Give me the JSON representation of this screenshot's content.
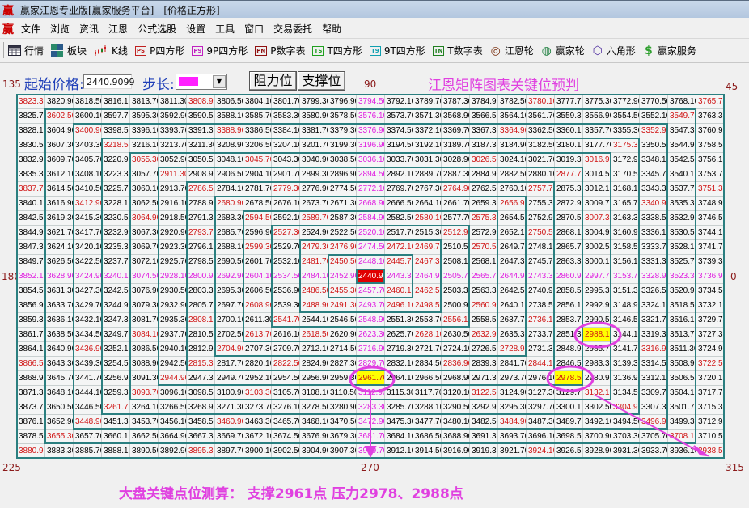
{
  "window": {
    "title": "赢家江恩专业版[赢家服务平台] - [价格正方形]",
    "logo": "赢"
  },
  "menu": [
    "文件",
    "浏览",
    "资讯",
    "江恩",
    "公式选股",
    "设置",
    "工具",
    "窗口",
    "交易委托",
    "帮助"
  ],
  "toolbar": [
    {
      "label": "行情",
      "icon": "table-icon"
    },
    {
      "label": "板块",
      "icon": "blocks-icon"
    },
    {
      "label": "K线",
      "icon": "candlestick-icon"
    },
    {
      "label": "P四方形",
      "icon": "ps-icon",
      "icon_text": "PS",
      "color": "#c02020"
    },
    {
      "label": "9P四方形",
      "icon": "p9-icon",
      "icon_text": "P9",
      "color": "#c020c0"
    },
    {
      "label": "P数字表",
      "icon": "pn-icon",
      "icon_text": "PN",
      "color": "#901010"
    },
    {
      "label": "T四方形",
      "icon": "ts-icon",
      "icon_text": "TS",
      "color": "#20a020"
    },
    {
      "label": "9T四方形",
      "icon": "t9-icon",
      "icon_text": "T9",
      "color": "#10a0b0"
    },
    {
      "label": "T数字表",
      "icon": "tn-icon",
      "icon_text": "TN",
      "color": "#208020"
    },
    {
      "label": "江恩轮",
      "icon": "gann-wheel-icon",
      "icon_text": "◎",
      "color": "#7a3010"
    },
    {
      "label": "赢家轮",
      "icon": "winner-wheel-icon",
      "icon_text": "◍",
      "color": "#208040"
    },
    {
      "label": "六角形",
      "icon": "hexagon-icon",
      "icon_text": "⬡",
      "color": "#5030a0"
    },
    {
      "label": "赢家服务",
      "icon": "dollar-icon",
      "icon_text": "$",
      "color": "#30a030"
    }
  ],
  "controls": {
    "start_price_label": "起始价格:",
    "start_price_value": "2440.9099",
    "step_label": "步长:",
    "step_color": "#ff20ff",
    "resistance_button": "阻力位",
    "support_button": "支撑位"
  },
  "heading": "江恩矩阵图表关键位预判",
  "angles": {
    "top_left": "135",
    "top": "90",
    "top_right": "45",
    "left": "180",
    "right": "0",
    "bottom_left": "225",
    "bottom": "270",
    "bottom_right": "315"
  },
  "colors": {
    "ring_line": "#2b7f80",
    "red": "#d01515",
    "magenta": "#e020e0",
    "center_bg": "#e00000",
    "highlight_bg": "#ffff00",
    "annotation": "#e040e0"
  },
  "grid": {
    "rows": [
      [
        3823.3,
        3820.9,
        3818.5,
        3816.1,
        3813.7,
        3811.3,
        3808.9,
        3806.5,
        3804.1,
        3801.7,
        3799.3,
        3796.9,
        3794.5,
        3792.1,
        3789.7,
        3787.3,
        3784.9,
        3782.5,
        3780.1,
        3777.7,
        3775.3,
        3772.9,
        3770.5,
        3768.1,
        3765.7
      ],
      [
        3825.7,
        3602.5,
        3600.1,
        3597.7,
        3595.3,
        3592.9,
        3590.5,
        3588.1,
        3585.7,
        3583.3,
        3580.9,
        3578.5,
        3576.1,
        3573.7,
        3571.3,
        3568.9,
        3566.5,
        3564.1,
        3561.7,
        3559.3,
        3556.9,
        3554.5,
        3552.1,
        3549.7,
        3763.3
      ],
      [
        3828.1,
        3604.9,
        3400.9,
        3398.5,
        3396.1,
        3393.7,
        3391.3,
        3388.9,
        3386.5,
        3384.1,
        3381.7,
        3379.3,
        3376.9,
        3374.5,
        3372.1,
        3369.7,
        3367.3,
        3364.9,
        3362.5,
        3360.1,
        3357.7,
        3355.3,
        3352.9,
        3547.3,
        3760.9
      ],
      [
        3830.5,
        3607.3,
        3403.3,
        3218.5,
        3216.1,
        3213.7,
        3211.3,
        3208.9,
        3206.5,
        3204.1,
        3201.7,
        3199.3,
        3196.9,
        3194.5,
        3192.1,
        3189.7,
        3187.3,
        3184.9,
        3182.5,
        3180.1,
        3177.7,
        3175.3,
        3350.5,
        3544.9,
        3758.5
      ],
      [
        3832.9,
        3609.7,
        3405.7,
        3220.9,
        3055.3,
        3052.9,
        3050.5,
        3048.1,
        3045.7,
        3043.3,
        3040.9,
        3038.5,
        3036.1,
        3033.7,
        3031.3,
        3028.9,
        3026.5,
        3024.1,
        3021.7,
        3019.3,
        3016.9,
        3172.9,
        3348.1,
        3542.5,
        3756.1
      ],
      [
        3835.3,
        3612.1,
        3408.1,
        3223.3,
        3057.7,
        2911.3,
        2908.9,
        2906.5,
        2904.1,
        2901.7,
        2899.3,
        2896.9,
        2894.5,
        2892.1,
        2889.7,
        2887.3,
        2884.9,
        2882.5,
        2880.1,
        2877.7,
        3014.5,
        3170.5,
        3345.7,
        3540.1,
        3753.7
      ],
      [
        3837.7,
        3614.5,
        3410.5,
        3225.7,
        3060.1,
        2913.7,
        2786.5,
        2784.1,
        2781.7,
        2779.3,
        2776.9,
        2774.5,
        2772.1,
        2769.7,
        2767.3,
        2764.9,
        2762.5,
        2760.1,
        2757.7,
        2875.3,
        3012.1,
        3168.1,
        3343.3,
        3537.7,
        3751.3
      ],
      [
        3840.1,
        3616.9,
        3412.9,
        3228.1,
        3062.5,
        2916.1,
        2788.9,
        2680.9,
        2678.5,
        2676.1,
        2673.7,
        2671.3,
        2668.9,
        2666.5,
        2664.1,
        2661.7,
        2659.3,
        2656.9,
        2755.3,
        2872.9,
        3009.7,
        3165.7,
        3340.9,
        3535.3,
        3748.9
      ],
      [
        3842.5,
        3619.3,
        3415.3,
        3230.5,
        3064.9,
        2918.5,
        2791.3,
        2683.3,
        2594.5,
        2592.1,
        2589.7,
        2587.3,
        2584.9,
        2582.5,
        2580.1,
        2577.7,
        2575.3,
        2654.5,
        2752.9,
        2870.5,
        3007.3,
        3163.3,
        3338.5,
        3532.9,
        3746.5
      ],
      [
        3844.9,
        3621.7,
        3417.7,
        3232.9,
        3067.3,
        2920.9,
        2793.7,
        2685.7,
        2596.9,
        2527.3,
        2524.9,
        2522.5,
        2520.1,
        2517.7,
        2515.3,
        2512.9,
        2572.9,
        2652.1,
        2750.5,
        2868.1,
        3004.9,
        3160.9,
        3336.1,
        3530.5,
        3744.1
      ],
      [
        3847.3,
        3624.1,
        3420.1,
        3235.3,
        3069.7,
        2923.3,
        2796.1,
        2688.1,
        2599.3,
        2529.7,
        2479.3,
        2476.9,
        2474.5,
        2472.1,
        2469.7,
        2510.5,
        2570.5,
        2649.7,
        2748.1,
        2865.7,
        3002.5,
        3158.5,
        3333.7,
        3528.1,
        3741.7
      ],
      [
        3849.7,
        3626.5,
        3422.5,
        3237.7,
        3072.1,
        2925.7,
        2798.5,
        2690.5,
        2601.7,
        2532.1,
        2481.7,
        2450.5,
        2448.1,
        2445.7,
        2467.3,
        2508.1,
        2568.1,
        2647.3,
        2745.7,
        2863.3,
        3000.1,
        3156.1,
        3331.3,
        3525.7,
        3739.3
      ],
      [
        3852.1,
        3628.9,
        3424.9,
        3240.1,
        3074.5,
        2928.1,
        2800.9,
        2692.9,
        2604.1,
        2534.5,
        2484.1,
        2452.9,
        2440.9,
        2443.3,
        2464.9,
        2505.7,
        2565.7,
        2644.9,
        2743.3,
        2860.9,
        2997.7,
        3153.7,
        3328.9,
        3523.3,
        3736.9
      ],
      [
        3854.5,
        3631.3,
        3427.3,
        3242.5,
        3076.9,
        2930.5,
        2803.3,
        2695.3,
        2606.5,
        2536.9,
        2486.5,
        2455.3,
        2457.7,
        2460.1,
        2462.5,
        2503.3,
        2563.3,
        2642.5,
        2740.9,
        2858.5,
        2995.3,
        3151.3,
        3326.5,
        3520.9,
        3734.5
      ],
      [
        3856.9,
        3633.7,
        3429.7,
        3244.9,
        3079.3,
        2932.9,
        2805.7,
        2697.7,
        2608.9,
        2539.3,
        2488.9,
        2491.3,
        2493.7,
        2496.1,
        2498.5,
        2500.9,
        2560.9,
        2640.1,
        2738.5,
        2856.1,
        2992.9,
        3148.9,
        3324.1,
        3518.5,
        3732.1
      ],
      [
        3859.3,
        3636.1,
        3432.1,
        3247.3,
        3081.7,
        2935.3,
        2808.1,
        2700.1,
        2611.3,
        2541.7,
        2544.1,
        2546.5,
        2548.9,
        2551.3,
        2553.7,
        2556.1,
        2558.5,
        2637.7,
        2736.1,
        2853.7,
        2990.5,
        3146.5,
        3321.7,
        3516.1,
        3729.7
      ],
      [
        3861.7,
        3638.5,
        3434.5,
        3249.7,
        3084.1,
        2937.7,
        2810.5,
        2702.5,
        2613.7,
        2616.1,
        2618.5,
        2620.9,
        2623.3,
        2625.7,
        2628.1,
        2630.5,
        2632.9,
        2635.3,
        2733.7,
        2851.3,
        2988.1,
        3144.1,
        3319.3,
        3513.7,
        3727.3
      ],
      [
        3864.1,
        3640.9,
        3436.9,
        3252.1,
        3086.5,
        2940.1,
        2812.9,
        2704.9,
        2707.3,
        2709.7,
        2712.1,
        2714.5,
        2716.9,
        2719.3,
        2721.7,
        2724.1,
        2726.5,
        2728.9,
        2731.3,
        2848.9,
        2985.7,
        3141.7,
        3316.9,
        3511.3,
        3724.9
      ],
      [
        3866.5,
        3643.3,
        3439.3,
        3254.5,
        3088.9,
        2942.5,
        2815.3,
        2817.7,
        2820.1,
        2822.5,
        2824.9,
        2827.3,
        2829.7,
        2832.1,
        2834.5,
        2836.9,
        2839.3,
        2841.7,
        2844.1,
        2846.5,
        2983.3,
        3139.3,
        3314.5,
        3508.9,
        3722.5
      ],
      [
        3868.9,
        3645.7,
        3441.7,
        3256.9,
        3091.3,
        2944.9,
        2947.3,
        2949.7,
        2952.1,
        2954.5,
        2956.9,
        2959.3,
        2961.7,
        2964.1,
        2966.5,
        2968.9,
        2971.3,
        2973.7,
        2976.1,
        2978.5,
        2980.9,
        3136.9,
        3312.1,
        3506.5,
        3720.1
      ],
      [
        3871.3,
        3648.1,
        3444.1,
        3259.3,
        3093.7,
        3096.1,
        3098.5,
        3100.9,
        3103.3,
        3105.7,
        3108.1,
        3110.5,
        3112.9,
        3115.3,
        3117.7,
        3120.1,
        3122.5,
        3124.9,
        3127.3,
        3129.7,
        3132.1,
        3134.5,
        3309.7,
        3504.1,
        3717.7
      ],
      [
        3873.7,
        3650.5,
        3446.5,
        3261.7,
        3264.1,
        3266.5,
        3268.9,
        3271.3,
        3273.7,
        3276.1,
        3278.5,
        3280.9,
        3283.3,
        3285.7,
        3288.1,
        3290.5,
        3292.9,
        3295.3,
        3297.7,
        3300.1,
        3302.5,
        3304.9,
        3307.3,
        3501.7,
        3715.3
      ],
      [
        3876.1,
        3652.9,
        3448.9,
        3451.3,
        3453.7,
        3456.1,
        3458.5,
        3460.9,
        3463.3,
        3465.7,
        3468.1,
        3470.5,
        3472.9,
        3475.3,
        3477.7,
        3480.1,
        3482.5,
        3484.9,
        3487.3,
        3489.7,
        3492.1,
        3494.5,
        3496.9,
        3499.3,
        3712.9
      ],
      [
        3878.5,
        3655.3,
        3657.7,
        3660.1,
        3662.5,
        3664.9,
        3667.3,
        3669.7,
        3672.1,
        3674.5,
        3676.9,
        3679.3,
        3681.7,
        3684.1,
        3686.5,
        3688.9,
        3691.3,
        3693.7,
        3696.1,
        3698.5,
        3700.9,
        3703.3,
        3705.7,
        3708.1,
        3710.5
      ],
      [
        3880.9,
        3883.3,
        3885.7,
        3888.1,
        3890.5,
        3892.9,
        3895.3,
        3897.7,
        3900.1,
        3902.5,
        3904.9,
        3907.3,
        3909.7,
        3912.1,
        3914.5,
        3916.9,
        3919.3,
        3921.7,
        3924.1,
        3926.5,
        3928.9,
        3931.3,
        3933.7,
        3936.1,
        3938.5
      ]
    ],
    "highlighted": [
      2961.7,
      2978.5,
      2988.1
    ]
  },
  "conclusion": "大盘关键点位测算： 支撑2961点  压力2978、2988点"
}
